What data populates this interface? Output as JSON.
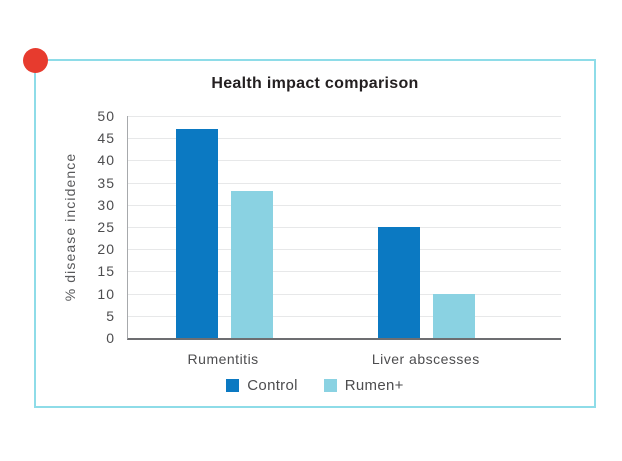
{
  "page": {
    "background_color": "#ffffff",
    "frame_border_color": "#8edce8",
    "corner_dot_color": "#e73b2e"
  },
  "chart_data": {
    "type": "bar",
    "title": "Health impact comparison",
    "ylabel": "% disease incidence",
    "xlabel": "",
    "categories": [
      "Rumentitis",
      "Liver abscesses"
    ],
    "series": [
      {
        "name": "Control",
        "color": "#0b79c2",
        "values": [
          47,
          25
        ]
      },
      {
        "name": "Rumen+",
        "color": "#8ad2e2",
        "values": [
          33,
          10
        ]
      }
    ],
    "ylim": [
      0,
      50
    ],
    "yticks": [
      0,
      5,
      10,
      15,
      20,
      25,
      30,
      35,
      40,
      45,
      50
    ],
    "grid": true,
    "legend_position": "bottom",
    "text_colors": {
      "title": "#231f20",
      "axis_text": "#4d4d4f",
      "ylabel": "#58595b"
    }
  }
}
